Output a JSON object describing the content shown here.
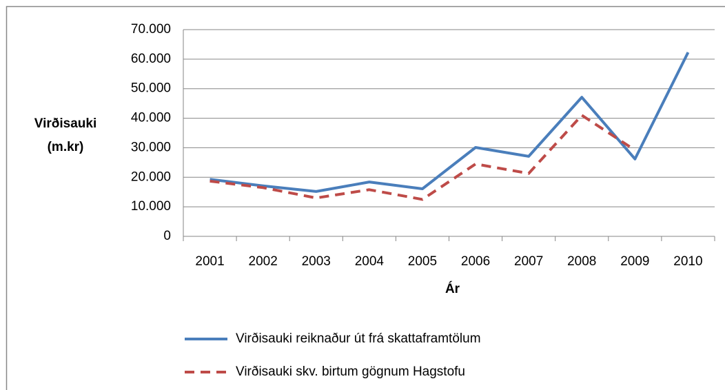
{
  "chart_data": {
    "type": "line",
    "y_label": [
      "Virðisauki",
      "(m.kr)"
    ],
    "x_label": "Ár",
    "categories": [
      "2001",
      "2002",
      "2003",
      "2004",
      "2005",
      "2006",
      "2007",
      "2008",
      "2009",
      "2010"
    ],
    "series": [
      {
        "name": "Virðisauki reiknaður út frá skattaframtölum",
        "color": "#4a7ebb",
        "dash": false,
        "values": [
          19300,
          17100,
          15200,
          18400,
          16100,
          30100,
          27100,
          47100,
          26200,
          62300
        ]
      },
      {
        "name": "Virðisauki skv. birtum gögnum Hagstofu",
        "color": "#be4b48",
        "dash": true,
        "values": [
          18700,
          16500,
          13000,
          15800,
          12500,
          24500,
          21300,
          41000,
          29200,
          null
        ]
      }
    ],
    "ylim": [
      0,
      70000
    ],
    "yticks": [
      0,
      {
        "value": 10000,
        "label": "10.000"
      },
      {
        "value": 20000,
        "label": "20.000"
      },
      {
        "value": 30000,
        "label": "30.000"
      },
      {
        "value": 40000,
        "label": "40.000"
      },
      {
        "value": 50000,
        "label": "50.000"
      },
      {
        "value": 60000,
        "label": "60.000"
      },
      {
        "value": 70000,
        "label": "70.000"
      }
    ],
    "grid": true,
    "legend": "bottom"
  }
}
